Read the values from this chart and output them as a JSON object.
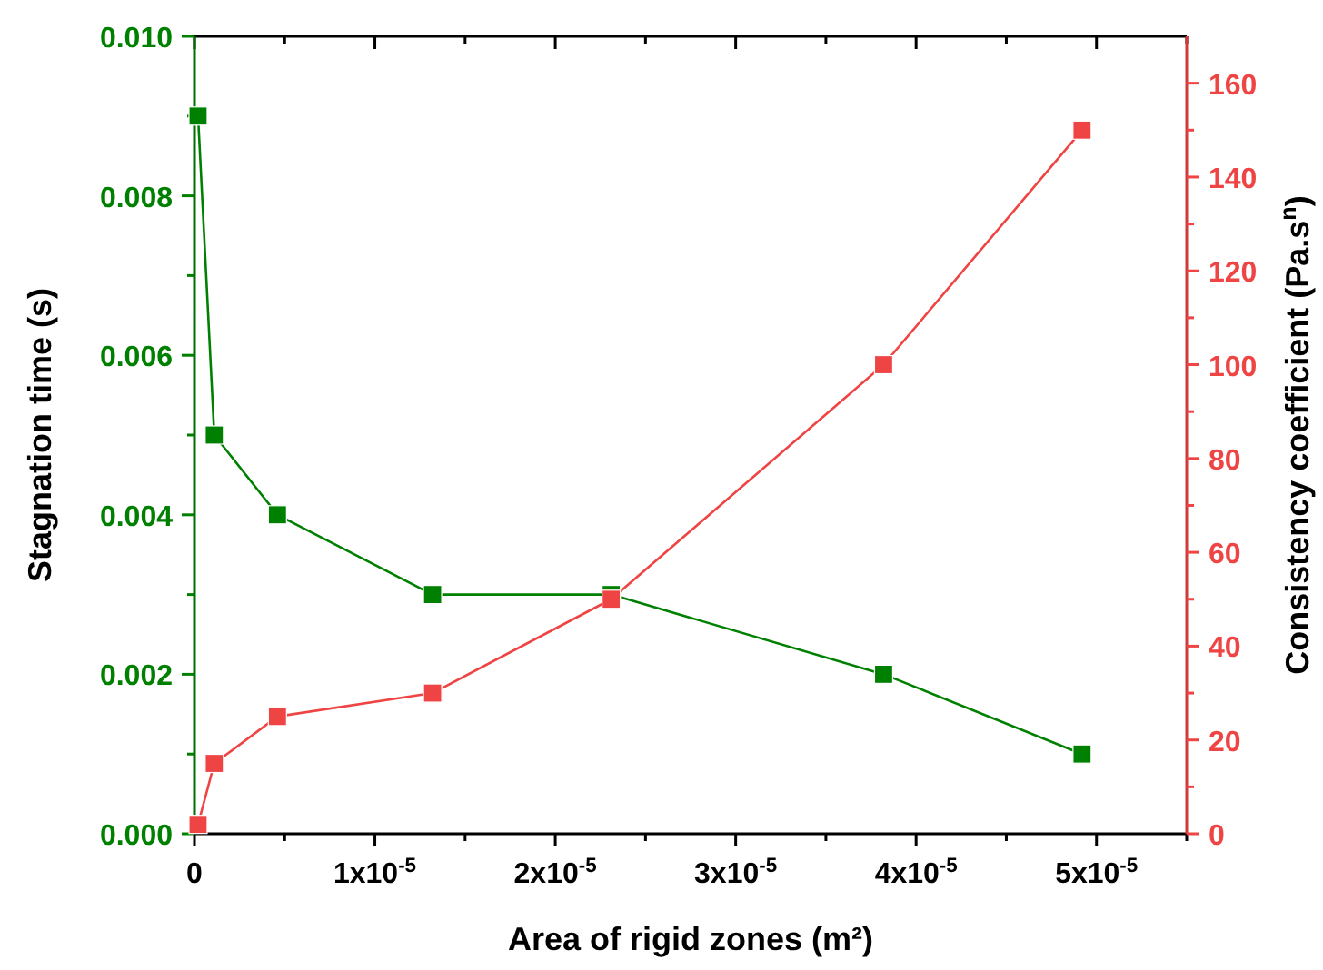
{
  "chart_data": {
    "type": "line",
    "xlabel": "Area of rigid zones (m²)",
    "ylabel": "Stagnation time (s)",
    "y2label": "Consistency coefficient (Pa.s$^{n}$)",
    "x": [
      2e-07,
      1.1e-06,
      4.6e-06,
      1.32e-05,
      2.31e-05,
      3.82e-05,
      4.92e-05
    ],
    "series": [
      {
        "color": "#008000",
        "values": [
          0.009,
          0.005,
          0.004,
          0.003,
          0.003,
          0.002,
          0.001
        ]
      },
      {
        "color": "#ef4444",
        "axis": "y2",
        "values": [
          2,
          15,
          25,
          30,
          50,
          100,
          150
        ]
      }
    ],
    "xlim": [
      0,
      5.5e-05
    ],
    "xticks": [
      0,
      {
        "value": 5e-06,
        "label": null
      },
      {
        "value": 1e-05,
        "label": "1x10$^{-5}$"
      },
      {
        "value": 1.5e-05,
        "label": null
      },
      {
        "value": 2e-05,
        "label": "2x10$^{-5}$"
      },
      {
        "value": 2.5e-05,
        "label": null
      },
      {
        "value": 3e-05,
        "label": "3x10$^{-5}$"
      },
      {
        "value": 3.5e-05,
        "label": null
      },
      {
        "value": 4e-05,
        "label": "4x10$^{-5}$"
      },
      {
        "value": 4.5e-05,
        "label": null
      },
      {
        "value": 5e-05,
        "label": "5x10$^{-5}$"
      },
      {
        "value": 5.5e-05,
        "label": null
      }
    ],
    "ylim": [
      0,
      0.01
    ],
    "yticks": [
      {
        "value": 0,
        "label": "0.000"
      },
      {
        "value": 0.001,
        "label": null
      },
      {
        "value": 0.002,
        "label": "0.002"
      },
      {
        "value": 0.003,
        "label": null
      },
      {
        "value": 0.004,
        "label": "0.004"
      },
      {
        "value": 0.005,
        "label": null
      },
      {
        "value": 0.006,
        "label": "0.006"
      },
      {
        "value": 0.007,
        "label": null
      },
      {
        "value": 0.008,
        "label": "0.008"
      },
      {
        "value": 0.009,
        "label": null
      },
      {
        "value": 0.01,
        "label": "0.010"
      }
    ],
    "y2lim": [
      0,
      170
    ],
    "y2ticks": [
      0,
      {
        "value": 10,
        "label": null
      },
      20,
      {
        "value": 30,
        "label": null
      },
      40,
      {
        "value": 50,
        "label": null
      },
      60,
      {
        "value": 70,
        "label": null
      },
      80,
      {
        "value": 90,
        "label": null
      },
      100,
      {
        "value": 110,
        "label": null
      },
      120,
      {
        "value": 130,
        "label": null
      },
      140,
      {
        "value": 150,
        "label": null
      },
      160
    ],
    "marker": "square",
    "line_style": "solid",
    "grid": false
  }
}
